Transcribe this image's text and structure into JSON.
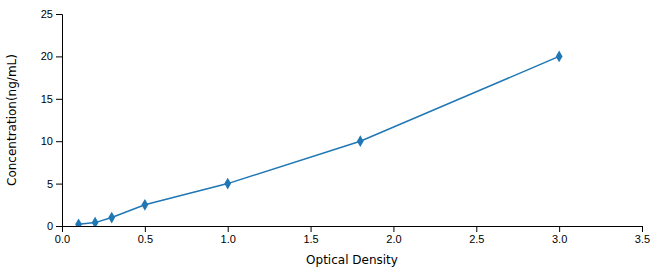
{
  "chart_data": {
    "type": "line",
    "x": [
      0.1,
      0.2,
      0.3,
      0.5,
      1.0,
      1.8,
      3.0
    ],
    "series": [
      {
        "values": [
          0.2,
          0.4,
          1.0,
          2.5,
          5.0,
          10.0,
          20.0
        ],
        "marker": "diamond",
        "line_style": "solid"
      }
    ],
    "xlabel": "Optical Density",
    "ylabel": "Concentration(ng/mL)",
    "xlim": [
      0,
      3.5
    ],
    "ylim": [
      0,
      25
    ],
    "xticks": [
      {
        "value": 0,
        "label": "0.0"
      },
      0.5,
      {
        "value": 1.0,
        "label": "1.0"
      },
      1.5,
      {
        "value": 2.0,
        "label": "2.0"
      },
      2.5,
      {
        "value": 3.0,
        "label": "3.0"
      },
      3.5
    ],
    "yticks": [
      0,
      5,
      10,
      15,
      20,
      25
    ],
    "grid": false
  }
}
